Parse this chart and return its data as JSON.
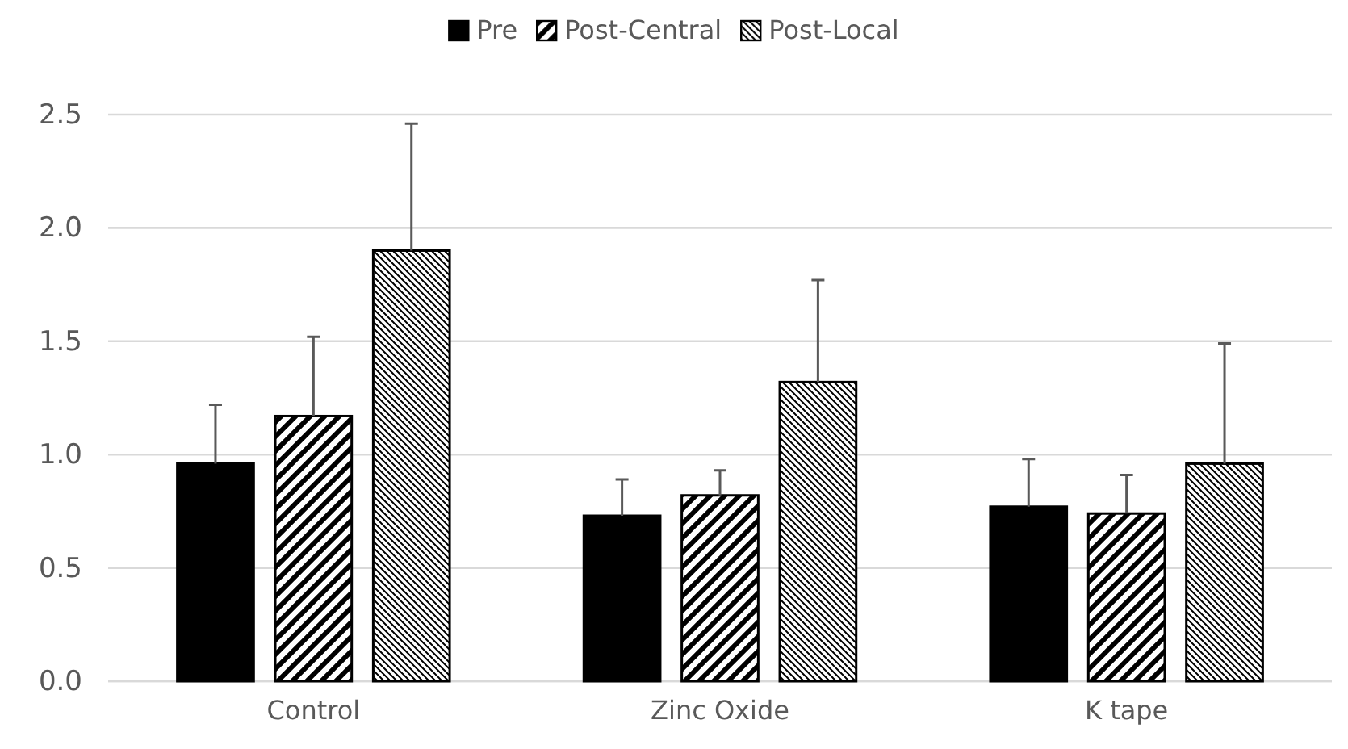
{
  "chart_data": {
    "type": "bar",
    "categories": [
      "Control",
      "Zinc Oxide",
      "K tape"
    ],
    "series": [
      {
        "name": "Pre",
        "color": "#000000",
        "values": [
          0.96,
          0.73,
          0.77
        ],
        "errors": [
          [
            0.96,
            1.22
          ],
          [
            0.73,
            0.89
          ],
          [
            0.77,
            0.98
          ]
        ]
      },
      {
        "name": "Post-Central",
        "color": "#000000",
        "values": [
          1.17,
          0.82,
          0.74
        ],
        "errors": [
          [
            1.17,
            1.52
          ],
          [
            0.82,
            0.93
          ],
          [
            0.74,
            0.91
          ]
        ]
      },
      {
        "name": "Post-Local",
        "color": "#000000",
        "values": [
          1.9,
          1.32,
          0.96
        ],
        "errors": [
          [
            1.9,
            2.46
          ],
          [
            1.32,
            1.77
          ],
          [
            0.96,
            1.49
          ]
        ]
      }
    ],
    "ylim": [
      0,
      2.5
    ],
    "yticks": [
      {
        "value": 0,
        "label": "0.0"
      },
      {
        "value": 0.5,
        "label": "0.5"
      },
      {
        "value": 1,
        "label": "1.0"
      },
      {
        "value": 1.5,
        "label": "1.5"
      },
      {
        "value": 2,
        "label": "2.0"
      },
      {
        "value": 2.5,
        "label": "2.5"
      }
    ],
    "grid": "y",
    "legend": "top"
  }
}
